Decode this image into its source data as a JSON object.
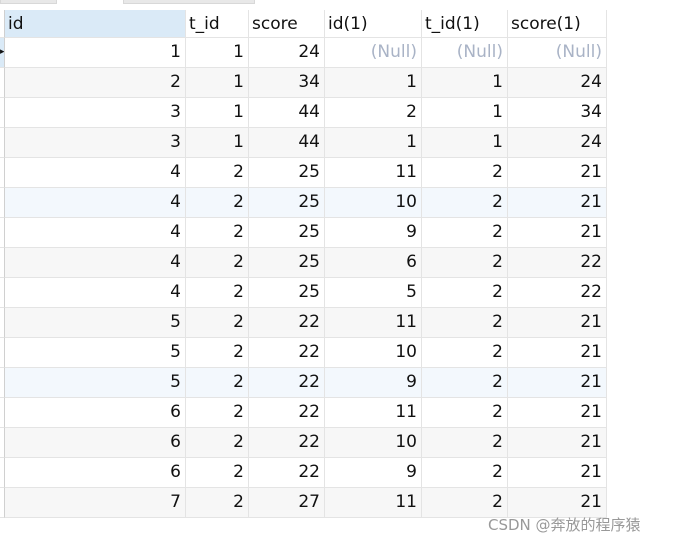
{
  "columns": [
    "id",
    "t_id",
    "score",
    "id(1)",
    "t_id(1)",
    "score(1)"
  ],
  "null_label": "(Null)",
  "rows": [
    [
      1,
      1,
      24,
      null,
      null,
      null
    ],
    [
      2,
      1,
      34,
      1,
      1,
      24
    ],
    [
      3,
      1,
      44,
      2,
      1,
      34
    ],
    [
      3,
      1,
      44,
      1,
      1,
      24
    ],
    [
      4,
      2,
      25,
      11,
      2,
      21
    ],
    [
      4,
      2,
      25,
      10,
      2,
      21
    ],
    [
      4,
      2,
      25,
      9,
      2,
      21
    ],
    [
      4,
      2,
      25,
      6,
      2,
      22
    ],
    [
      4,
      2,
      25,
      5,
      2,
      22
    ],
    [
      5,
      2,
      22,
      11,
      2,
      21
    ],
    [
      5,
      2,
      22,
      10,
      2,
      21
    ],
    [
      5,
      2,
      22,
      9,
      2,
      21
    ],
    [
      6,
      2,
      22,
      11,
      2,
      21
    ],
    [
      6,
      2,
      22,
      10,
      2,
      21
    ],
    [
      6,
      2,
      22,
      9,
      2,
      21
    ],
    [
      7,
      2,
      27,
      11,
      2,
      21
    ]
  ],
  "highlighted_rows": [
    5,
    11
  ],
  "colors": {
    "header_selected": "#daeaf7",
    "null_text": "#a9b3c6",
    "alt_row": "#f7f7f7"
  },
  "watermark": "CSDN @奔放的程序猿"
}
